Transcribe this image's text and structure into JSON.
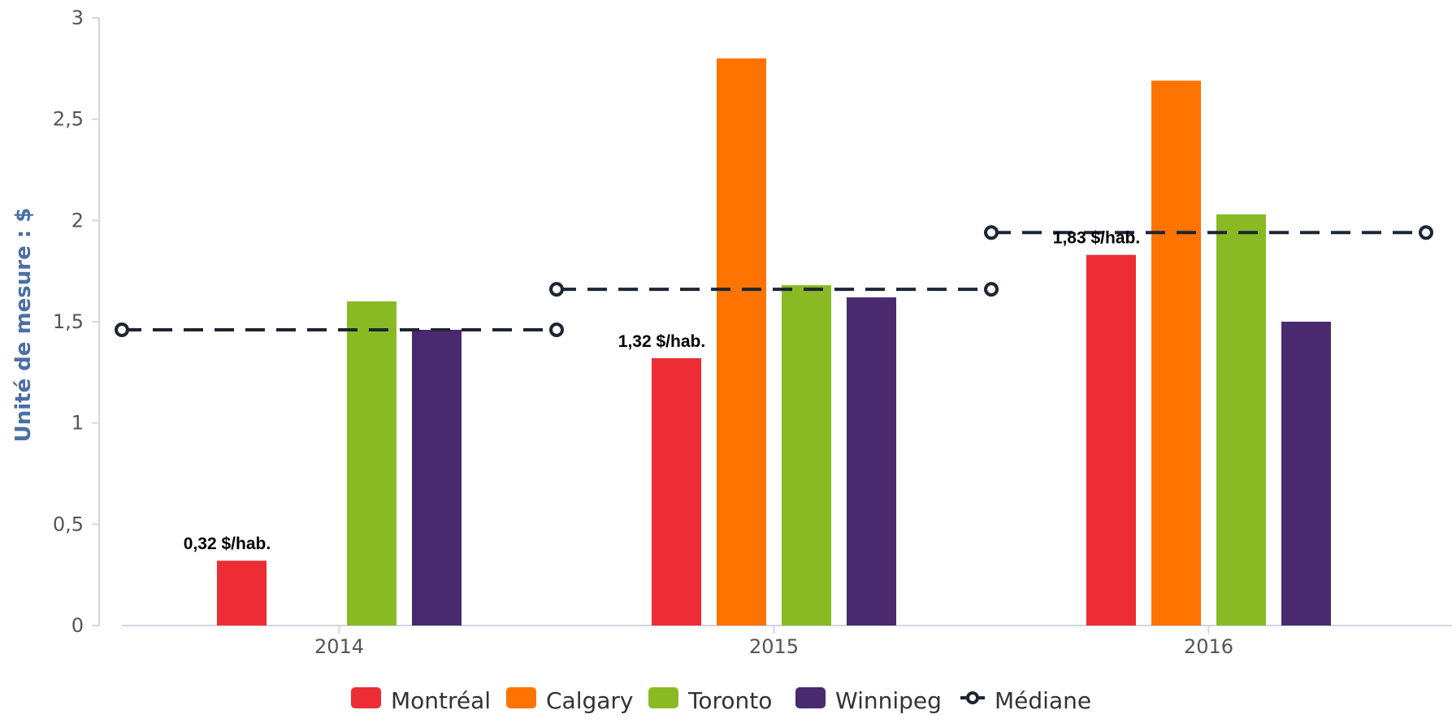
{
  "chart_data": {
    "type": "bar",
    "categories": [
      "2014",
      "2015",
      "2016"
    ],
    "ylabel": "Unité de mesure : $",
    "ylim": [
      0,
      3
    ],
    "yticks": [
      {
        "value": 0,
        "label": "0"
      },
      {
        "value": 0.5,
        "label": "0,5"
      },
      {
        "value": 1,
        "label": "1"
      },
      {
        "value": 1.5,
        "label": "1,5"
      },
      {
        "value": 2,
        "label": "2"
      },
      {
        "value": 2.5,
        "label": "2,5"
      },
      {
        "value": 3,
        "label": "3"
      }
    ],
    "grid": false,
    "legend_position": "bottom-center",
    "series": [
      {
        "name": "Montréal",
        "color": "#ec2d36",
        "values": [
          0.32,
          1.32,
          1.83
        ]
      },
      {
        "name": "Calgary",
        "color": "#ff7300",
        "values": [
          null,
          2.8,
          2.69
        ]
      },
      {
        "name": "Toronto",
        "color": "#8aba23",
        "values": [
          1.6,
          1.68,
          2.03
        ]
      },
      {
        "name": "Winnipeg",
        "color": "#4a2a6e",
        "values": [
          1.46,
          1.62,
          1.5
        ]
      }
    ],
    "median": {
      "name": "Médiane",
      "type": "line",
      "style": "dashed",
      "color": "#1c2533",
      "values": [
        1.46,
        1.66,
        1.94
      ]
    },
    "annotations": [
      {
        "category": "2014",
        "series": "Montréal",
        "text": "0,32 $/hab."
      },
      {
        "category": "2015",
        "series": "Montréal",
        "text": "1,32 $/hab."
      },
      {
        "category": "2016",
        "series": "Montréal",
        "text": "1,83 $/hab."
      }
    ]
  }
}
